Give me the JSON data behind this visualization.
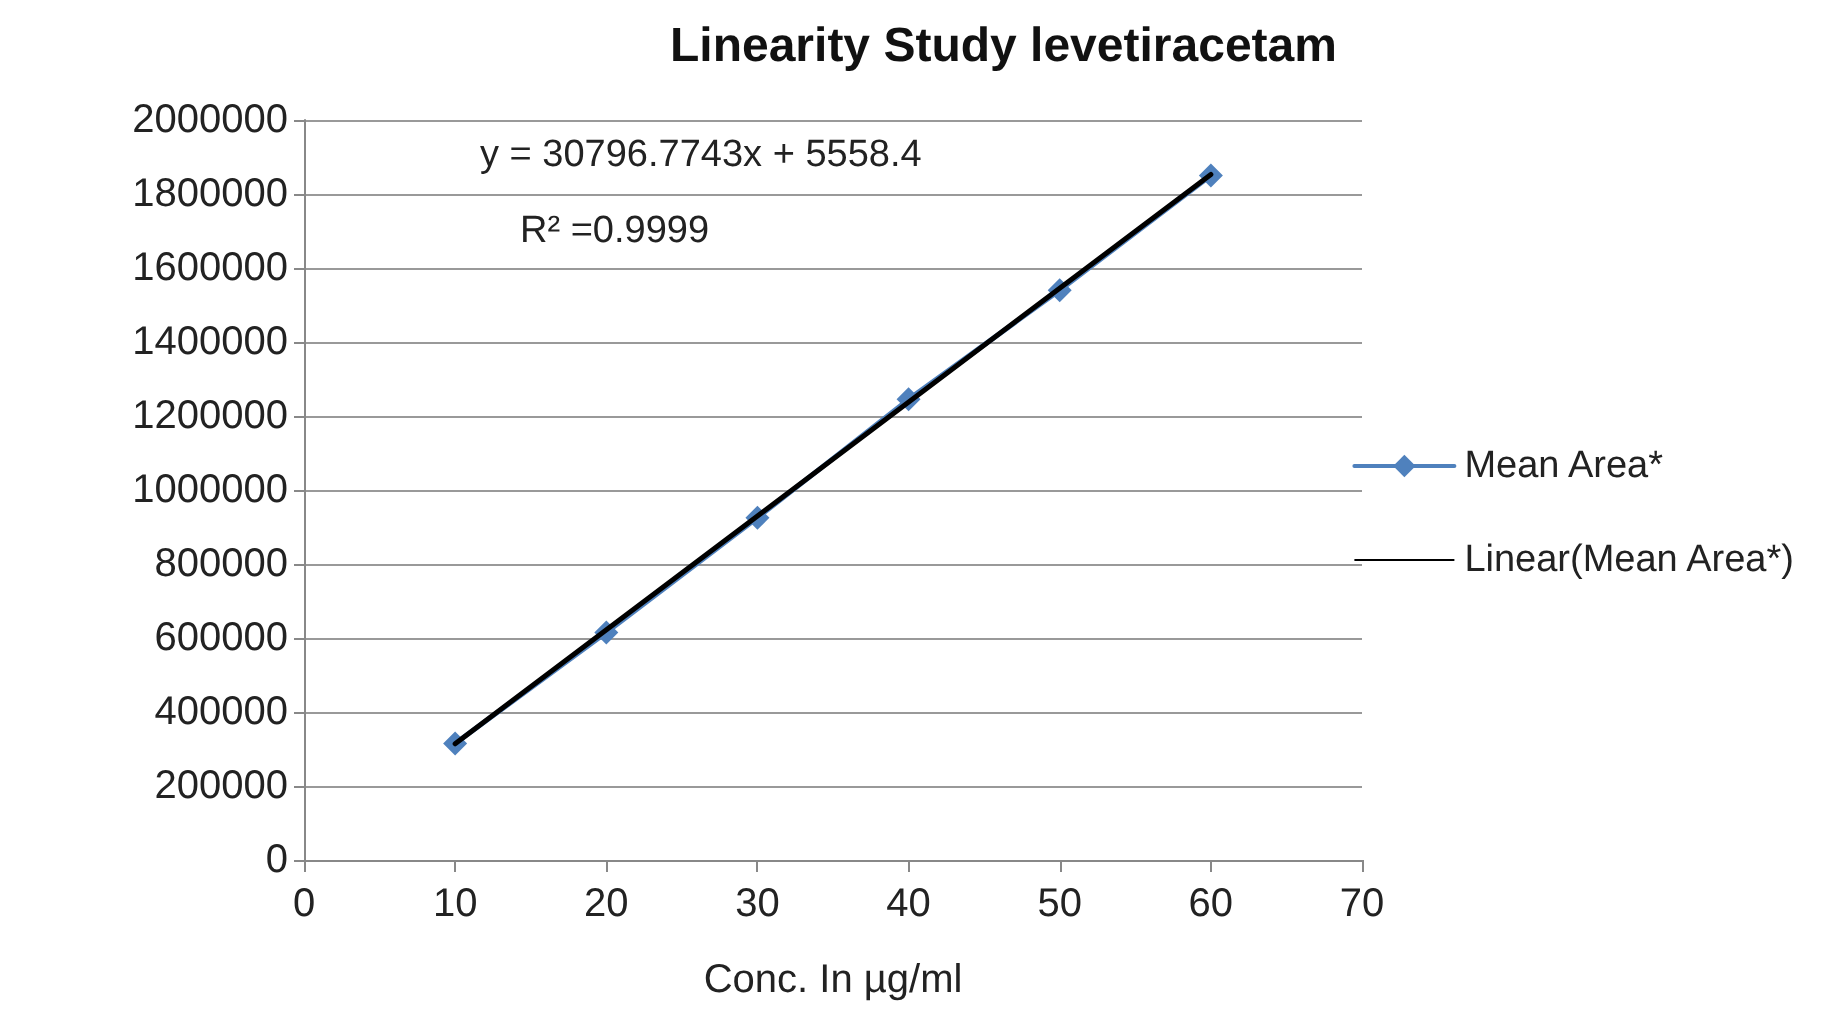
{
  "chart_data": {
    "type": "line",
    "title": "Linearity Study levetiracetam",
    "xlabel": "Conc. In µg/ml",
    "annotations": [
      "y = 30796.7743x + 5558.4",
      "R² =0.9999"
    ],
    "x": [
      10,
      20,
      30,
      40,
      50,
      60
    ],
    "series": [
      {
        "name": "Mean Area*",
        "color": "#4f81bd",
        "values": [
          315000,
          615000,
          925000,
          1245000,
          1540000,
          1850000
        ],
        "marker": "diamond"
      },
      {
        "name": "Linear(Mean Area*)",
        "type": "line",
        "color": "#000000",
        "x": [
          10,
          60
        ],
        "values": [
          314000,
          1853000
        ],
        "marker": "none"
      }
    ],
    "xlim": [
      0,
      70
    ],
    "xticks": [
      0,
      10,
      20,
      30,
      40,
      50,
      60,
      70
    ],
    "ylim": [
      0,
      2000000
    ],
    "yticks": [
      0,
      200000,
      400000,
      600000,
      800000,
      1000000,
      1200000,
      1400000,
      1600000,
      1800000,
      2000000
    ],
    "grid": "y",
    "legend": "right",
    "line_style": "solid"
  }
}
